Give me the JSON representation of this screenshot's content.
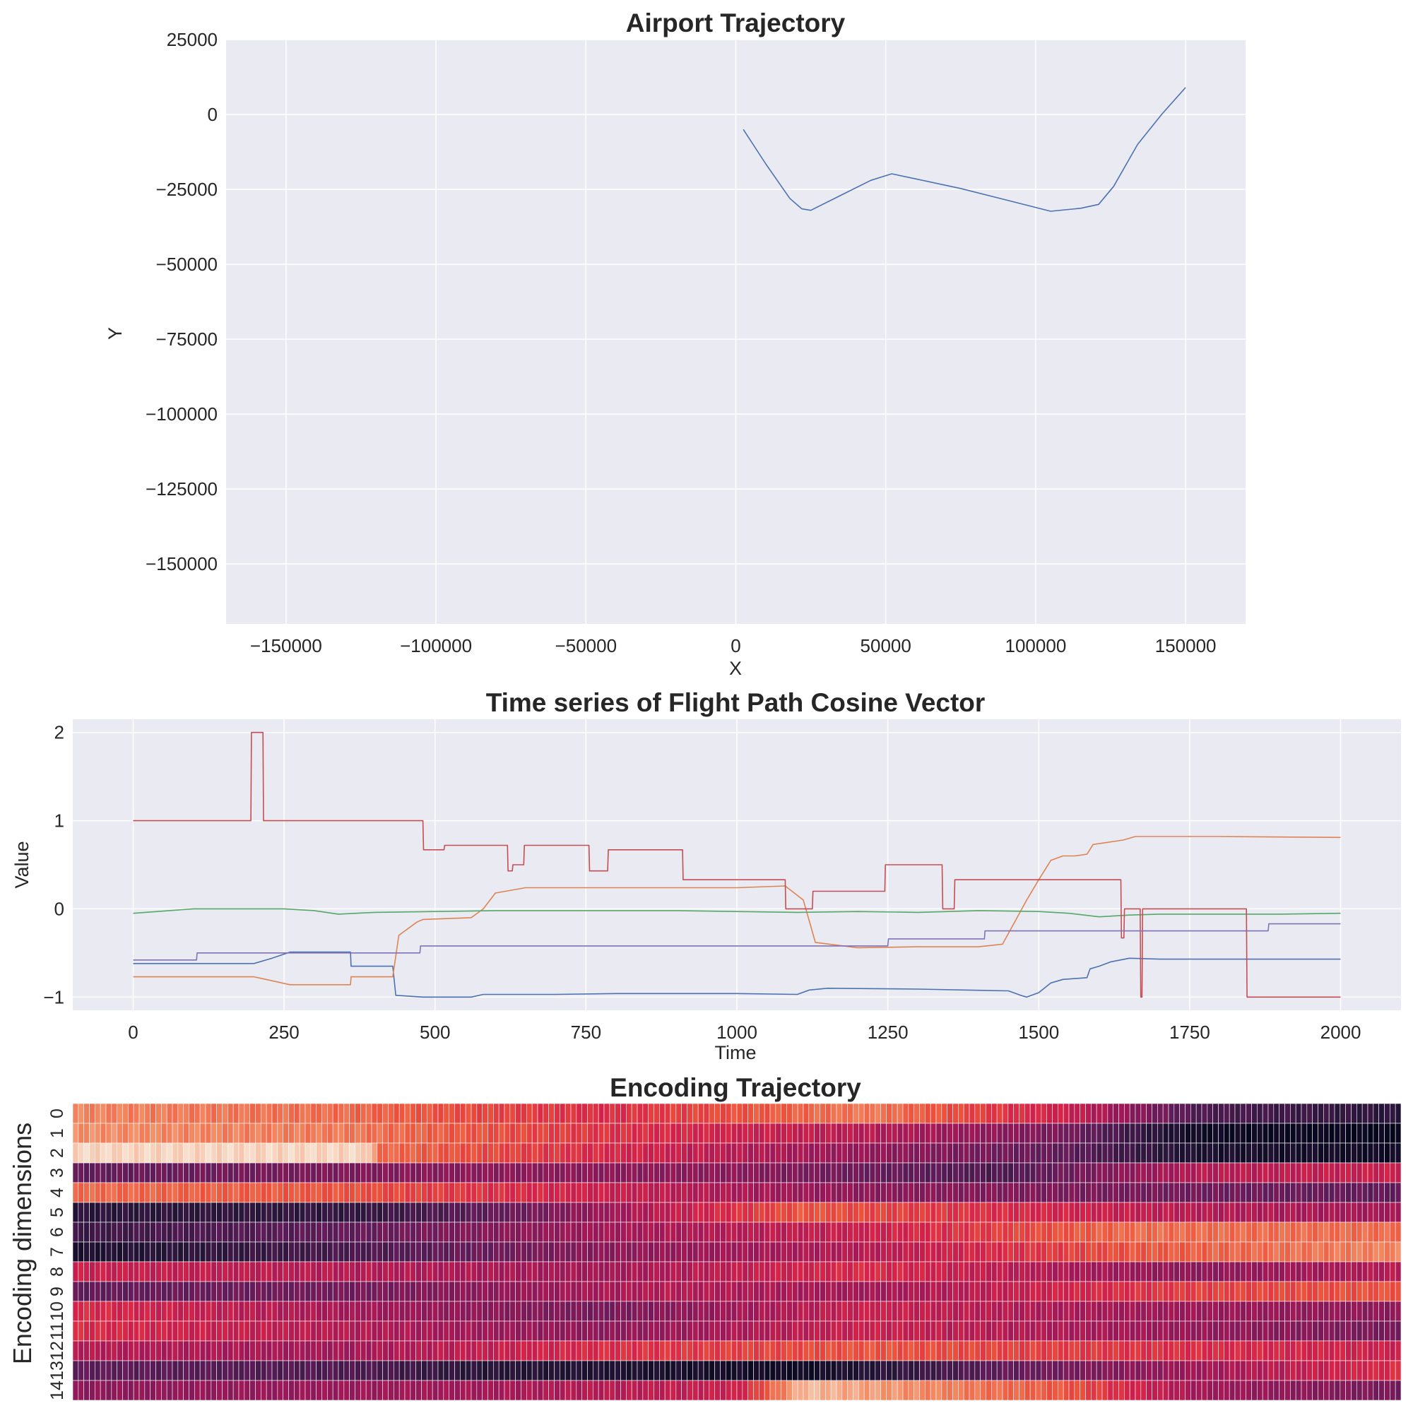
{
  "chart_data": [
    {
      "type": "line",
      "title": "Airport Trajectory",
      "xlabel": "X",
      "ylabel": "Y",
      "xlim": [
        -170000,
        170000
      ],
      "ylim": [
        -170000,
        25000
      ],
      "x_ticks": [
        -150000,
        -100000,
        -50000,
        0,
        50000,
        100000,
        150000
      ],
      "x_tick_labels": [
        "−150000",
        "−100000",
        "−50000",
        "0",
        "50000",
        "100000",
        "150000"
      ],
      "y_ticks": [
        25000,
        0,
        -25000,
        -50000,
        -75000,
        -100000,
        -125000,
        -150000
      ],
      "y_tick_labels": [
        "25000",
        "0",
        "−25000",
        "−50000",
        "−75000",
        "−100000",
        "−125000",
        "−150000"
      ],
      "grid": true,
      "series": [
        {
          "color": "#4c72b0",
          "x": [
            2500,
            10000,
            18000,
            22000,
            25000,
            35000,
            45000,
            52000,
            60000,
            75000,
            90000,
            105000,
            115000,
            121000,
            126000,
            134000,
            142000,
            150000
          ],
          "y": [
            -5000,
            -16500,
            -28000,
            -31500,
            -32000,
            -27000,
            -22000,
            -19800,
            -21500,
            -24700,
            -28500,
            -32300,
            -31300,
            -30000,
            -24000,
            -10000,
            0,
            9000
          ]
        }
      ]
    },
    {
      "type": "line",
      "title": "Time series of Flight Path Cosine Vector",
      "xlabel": "Time",
      "ylabel": "Value",
      "xlim": [
        -100,
        2100
      ],
      "ylim": [
        -1.15,
        2.15
      ],
      "x_ticks": [
        0,
        250,
        500,
        750,
        1000,
        1250,
        1500,
        1750,
        2000
      ],
      "x_tick_labels": [
        "0",
        "250",
        "500",
        "750",
        "1000",
        "1250",
        "1500",
        "1750",
        "2000"
      ],
      "y_ticks": [
        2,
        1,
        0,
        -1
      ],
      "y_tick_labels": [
        "2",
        "1",
        "0",
        "−1"
      ],
      "grid": true,
      "series": [
        {
          "color": "#4c72b0",
          "x": [
            0,
            200,
            230,
            260,
            360,
            361,
            430,
            435,
            480,
            560,
            580,
            700,
            800,
            1000,
            1100,
            1120,
            1150,
            1300,
            1450,
            1470,
            1480,
            1500,
            1520,
            1540,
            1560,
            1580,
            1585,
            1600,
            1620,
            1650,
            1700,
            1800,
            1900,
            2000
          ],
          "y": [
            -0.62,
            -0.62,
            -0.56,
            -0.49,
            -0.49,
            -0.65,
            -0.65,
            -0.98,
            -1.0,
            -1.0,
            -0.97,
            -0.97,
            -0.96,
            -0.96,
            -0.97,
            -0.92,
            -0.9,
            -0.91,
            -0.93,
            -0.98,
            -1.0,
            -0.95,
            -0.84,
            -0.8,
            -0.79,
            -0.78,
            -0.68,
            -0.65,
            -0.6,
            -0.56,
            -0.57,
            -0.57,
            -0.57,
            -0.57
          ]
        },
        {
          "color": "#dd8452",
          "x": [
            0,
            200,
            220,
            260,
            360,
            361,
            430,
            440,
            470,
            480,
            560,
            580,
            600,
            650,
            800,
            1000,
            1080,
            1110,
            1130,
            1200,
            1300,
            1400,
            1440,
            1460,
            1480,
            1500,
            1520,
            1540,
            1560,
            1580,
            1590,
            1640,
            1660,
            1800,
            2000
          ],
          "y": [
            -0.77,
            -0.77,
            -0.8,
            -0.86,
            -0.86,
            -0.77,
            -0.77,
            -0.3,
            -0.15,
            -0.12,
            -0.1,
            0.0,
            0.18,
            0.24,
            0.24,
            0.24,
            0.26,
            0.1,
            -0.38,
            -0.44,
            -0.43,
            -0.43,
            -0.4,
            -0.15,
            0.1,
            0.33,
            0.55,
            0.6,
            0.6,
            0.62,
            0.73,
            0.78,
            0.82,
            0.82,
            0.81
          ]
        },
        {
          "color": "#55a868",
          "x": [
            0,
            100,
            200,
            250,
            300,
            340,
            400,
            500,
            600,
            700,
            800,
            900,
            1000,
            1100,
            1200,
            1300,
            1400,
            1500,
            1550,
            1600,
            1650,
            1700,
            1800,
            1900,
            2000
          ],
          "y": [
            -0.05,
            0.0,
            0.0,
            0.0,
            -0.02,
            -0.06,
            -0.04,
            -0.03,
            -0.02,
            -0.02,
            -0.02,
            -0.02,
            -0.03,
            -0.04,
            -0.03,
            -0.04,
            -0.02,
            -0.03,
            -0.05,
            -0.09,
            -0.07,
            -0.06,
            -0.06,
            -0.06,
            -0.05
          ]
        },
        {
          "color": "#c44e52",
          "x": [
            0,
            195,
            196,
            215,
            216,
            480,
            481,
            515,
            516,
            620,
            621,
            628,
            629,
            647,
            648,
            755,
            756,
            786,
            787,
            910,
            911,
            1080,
            1081,
            1125,
            1126,
            1245,
            1246,
            1340,
            1341,
            1360,
            1361,
            1636,
            1637,
            1641,
            1642,
            1668,
            1669,
            1671,
            1672,
            1844,
            1845,
            2000
          ],
          "y": [
            1.0,
            1.0,
            2.0,
            2.0,
            1.0,
            1.0,
            0.67,
            0.67,
            0.72,
            0.72,
            0.43,
            0.43,
            0.5,
            0.5,
            0.72,
            0.72,
            0.43,
            0.43,
            0.67,
            0.67,
            0.33,
            0.33,
            0.0,
            0.0,
            0.2,
            0.2,
            0.5,
            0.5,
            0.0,
            0.0,
            0.33,
            0.33,
            -0.33,
            -0.33,
            0.0,
            0.0,
            -1.0,
            -1.0,
            0.0,
            0.0,
            -1.0,
            -1.0
          ]
        },
        {
          "color": "#8172b3",
          "x": [
            0,
            105,
            106,
            475,
            476,
            1250,
            1251,
            1410,
            1411,
            1880,
            1881,
            2000
          ],
          "y": [
            -0.58,
            -0.58,
            -0.5,
            -0.5,
            -0.42,
            -0.42,
            -0.34,
            -0.34,
            -0.25,
            -0.25,
            -0.17,
            -0.17
          ]
        }
      ]
    },
    {
      "type": "heatmap",
      "title": "Encoding Trajectory",
      "ylabel": "Encoding dimensions",
      "row_labels": [
        "0",
        "1",
        "2",
        "3",
        "4",
        "5",
        "6",
        "7",
        "8",
        "9",
        "10",
        "11",
        "12",
        "13",
        "14"
      ],
      "colormap": "rocket",
      "value_range": [
        0,
        1
      ],
      "n_columns": 240,
      "rows": [
        {
          "t": [
            0,
            0.2,
            0.4,
            0.6,
            0.75,
            0.85,
            1.0
          ],
          "v": [
            0.8,
            0.75,
            0.6,
            0.78,
            0.55,
            0.25,
            0.15
          ]
        },
        {
          "t": [
            0,
            0.2,
            0.4,
            0.6,
            0.75,
            0.85,
            1.0
          ],
          "v": [
            0.82,
            0.78,
            0.62,
            0.5,
            0.35,
            0.05,
            0.02
          ]
        },
        {
          "t": [
            0,
            0.22,
            0.23,
            0.5,
            0.75,
            0.85,
            1.0
          ],
          "v": [
            0.95,
            0.95,
            0.75,
            0.5,
            0.3,
            0.1,
            0.05
          ]
        },
        {
          "t": [
            0,
            0.3,
            0.5,
            0.7,
            0.85,
            1.0
          ],
          "v": [
            0.3,
            0.4,
            0.4,
            0.25,
            0.5,
            0.55
          ]
        },
        {
          "t": [
            0,
            0.2,
            0.4,
            0.6,
            0.8,
            1.0
          ],
          "v": [
            0.75,
            0.7,
            0.55,
            0.4,
            0.35,
            0.3
          ]
        },
        {
          "t": [
            0,
            0.22,
            0.35,
            0.55,
            0.7,
            0.85,
            1.0
          ],
          "v": [
            0.15,
            0.18,
            0.35,
            0.7,
            0.6,
            0.5,
            0.45
          ]
        },
        {
          "t": [
            0,
            0.2,
            0.4,
            0.6,
            0.8,
            1.0
          ],
          "v": [
            0.2,
            0.3,
            0.45,
            0.55,
            0.75,
            0.75
          ]
        },
        {
          "t": [
            0,
            0.22,
            0.4,
            0.6,
            0.8,
            1.0
          ],
          "v": [
            0.1,
            0.25,
            0.4,
            0.5,
            0.7,
            0.8
          ]
        },
        {
          "t": [
            0,
            0.2,
            0.4,
            0.6,
            0.85,
            1.0
          ],
          "v": [
            0.55,
            0.5,
            0.45,
            0.6,
            0.4,
            0.5
          ]
        },
        {
          "t": [
            0,
            0.22,
            0.45,
            0.6,
            0.85,
            1.0
          ],
          "v": [
            0.3,
            0.35,
            0.5,
            0.45,
            0.65,
            0.7
          ]
        },
        {
          "t": [
            0,
            0.22,
            0.4,
            0.6,
            0.8,
            1.0
          ],
          "v": [
            0.6,
            0.45,
            0.35,
            0.55,
            0.45,
            0.4
          ]
        },
        {
          "t": [
            0,
            0.2,
            0.4,
            0.6,
            0.8,
            1.0
          ],
          "v": [
            0.6,
            0.5,
            0.4,
            0.55,
            0.45,
            0.35
          ]
        },
        {
          "t": [
            0,
            0.2,
            0.4,
            0.6,
            0.85,
            1.0
          ],
          "v": [
            0.5,
            0.45,
            0.6,
            0.7,
            0.6,
            0.55
          ]
        },
        {
          "t": [
            0,
            0.22,
            0.3,
            0.55,
            0.7,
            0.85,
            1.0
          ],
          "v": [
            0.3,
            0.25,
            0.15,
            0.05,
            0.3,
            0.45,
            0.6
          ]
        },
        {
          "t": [
            0,
            0.3,
            0.5,
            0.55,
            0.75,
            0.85,
            1.0
          ],
          "v": [
            0.4,
            0.45,
            0.55,
            0.9,
            0.7,
            0.45,
            0.35
          ]
        }
      ]
    }
  ]
}
